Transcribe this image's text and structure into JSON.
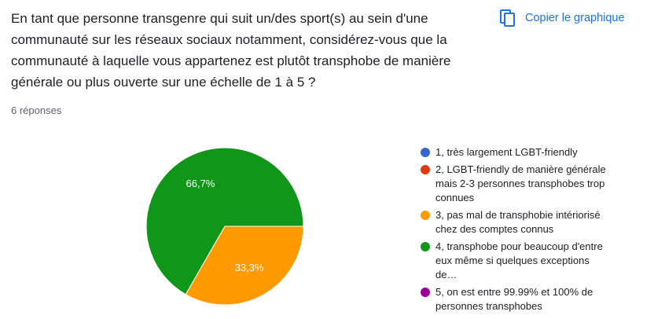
{
  "header": {
    "action": "Copier le graphique"
  },
  "chart_data": {
    "type": "pie",
    "title": "En tant que personne transgenre qui suit un/des sport(s) au sein d'une communauté sur les réseaux sociaux notamment, considérez-vous que la communauté à laquelle vous appartenez est plutôt transphobe de manière générale ou plus ouverte sur une échelle de 1 à 5 ?",
    "subtitle": "6 réponses",
    "categories": [
      "1, très largement LGBT-friendly",
      "2, LGBT-friendly de manière générale mais 2-3 personnes transphobes trop connues",
      "3, pas mal de transphobie intériorisé chez des comptes connus",
      "4, transphobe pour beaucoup d'entre eux même si quelques exceptions de…",
      "5, on est entre 99.99% et 100% de personnes transphobes"
    ],
    "values": [
      0,
      0,
      33.3,
      66.7,
      0
    ],
    "value_labels": [
      null,
      null,
      "33,3%",
      "66,7%",
      null
    ],
    "colors": [
      "#3366cc",
      "#dc3912",
      "#ff9900",
      "#109618",
      "#990099"
    ],
    "legend": "right"
  }
}
